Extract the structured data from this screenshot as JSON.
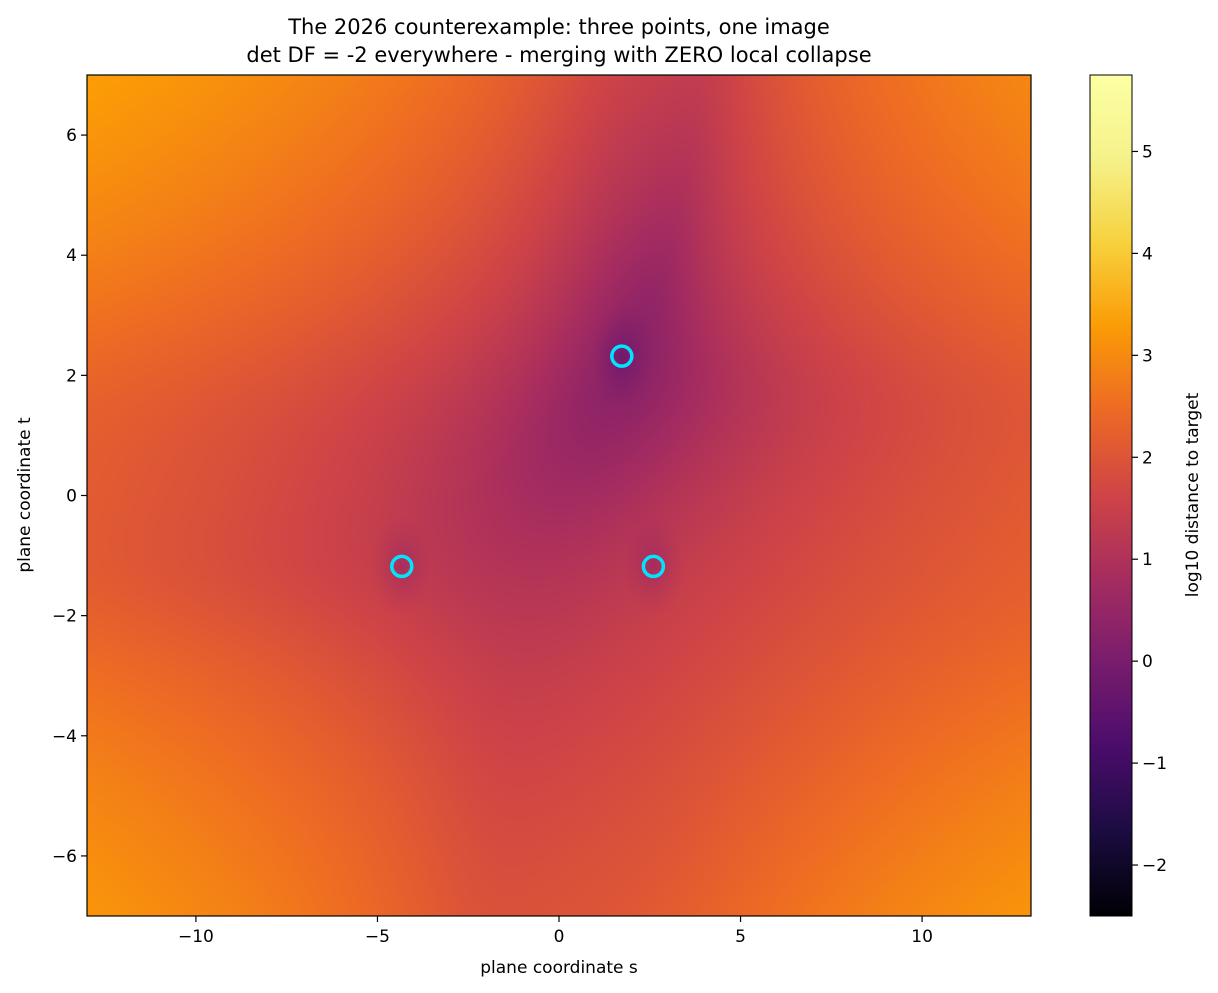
{
  "chart_data": {
    "type": "heatmap",
    "title": "The 2026 counterexample: three points, one image",
    "subtitle": "det DF = -2 everywhere - merging with ZERO local collapse",
    "xlabel": "plane coordinate s",
    "ylabel": "plane coordinate t",
    "xlim": [
      -13,
      13
    ],
    "ylim": [
      -7,
      7
    ],
    "x_ticks": [
      -10,
      -5,
      0,
      5,
      10
    ],
    "x_tick_labels": [
      "−10",
      "−5",
      "0",
      "5",
      "10"
    ],
    "y_ticks": [
      -6,
      -4,
      -2,
      0,
      2,
      4,
      6
    ],
    "y_tick_labels": [
      "−6",
      "−4",
      "−2",
      "0",
      "2",
      "4",
      "6"
    ],
    "colorbar": {
      "label": "log10 distance to target",
      "range": [
        -2.5,
        5.75
      ],
      "ticks": [
        -2,
        -1,
        0,
        1,
        2,
        3,
        4,
        5
      ],
      "tick_labels": [
        "−2",
        "−1",
        "0",
        "1",
        "2",
        "3",
        "4",
        "5"
      ],
      "colormap": "inferno"
    },
    "grid": false,
    "markers": {
      "style": "hollow circle",
      "color": "#00e5ff",
      "points": [
        {
          "x": -4.33,
          "y": -1.18
        },
        {
          "x": 1.73,
          "y": 2.32
        },
        {
          "x": 2.6,
          "y": -1.18
        }
      ]
    },
    "field": {
      "description": "log10 of distance from F(s,t) to the common image point",
      "s_min": -13,
      "s_max": 13,
      "t_min": -7,
      "t_max": 7
    }
  }
}
